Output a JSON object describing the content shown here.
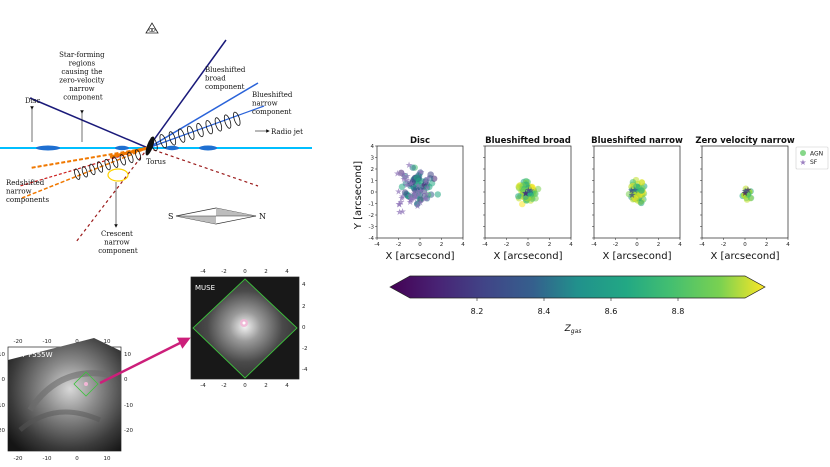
{
  "diagram": {
    "labels": {
      "star_forming": [
        "Star-forming",
        "regions",
        "causing the",
        "zero-velocity",
        "narrow",
        "component"
      ],
      "disc": "Disc",
      "blue_broad": [
        "Blueshifted",
        "broad",
        "component"
      ],
      "blue_narrow": [
        "Blueshifted",
        "narrow",
        "component"
      ],
      "radio_jet": "Radio jet",
      "torus": "Torus",
      "red_narrow": [
        "Redshifted",
        "narrow",
        "components"
      ],
      "crescent": [
        "Crescent",
        "narrow",
        "component"
      ],
      "south": "S",
      "north": "N"
    },
    "colors": {
      "disc_line": "#00bfff",
      "dark_blue": "#1a1a7a",
      "mid_blue": "#2255cc",
      "orange": "#f07800",
      "dark_red": "#9b1b1b",
      "yellow": "#ffd400"
    },
    "icons": [
      "eye-icon",
      "compass-arrow-icon"
    ]
  },
  "images": {
    "hst": {
      "label": "HST F555W",
      "label_italic": "HST",
      "label_rest": " F555W",
      "x_ticks": [
        "-20",
        "-10",
        "0",
        "10"
      ],
      "y_ticks": [
        "10",
        "0",
        "-10",
        "-20"
      ]
    },
    "muse": {
      "label": "MUSE",
      "x_ticks": [
        "-4",
        "-2",
        "0",
        "2",
        "4"
      ],
      "y_ticks": [
        "4",
        "2",
        "0",
        "-2",
        "-4"
      ]
    },
    "arrow_color": "#cc1f7a"
  },
  "chart_data": {
    "type": "scatter",
    "panels": [
      {
        "title": "Disc"
      },
      {
        "title": "Blueshifted broad"
      },
      {
        "title": "Blueshifted narrow"
      },
      {
        "title": "Zero velocity narrow"
      }
    ],
    "ylabel": "Y [arcsecond]",
    "xlabel": "X [arcsecond]",
    "xlim": [
      -4,
      4
    ],
    "ylim": [
      -4,
      4
    ],
    "x_ticks": [
      "-4",
      "-2",
      "0",
      "2",
      "4"
    ],
    "y_ticks": [
      "4",
      "3",
      "2",
      "1",
      "0",
      "-1",
      "-2",
      "-3",
      "-4"
    ],
    "legend": {
      "placement": "right",
      "items": [
        {
          "label": "AGN",
          "marker": "circle"
        },
        {
          "label": "SF",
          "marker": "star",
          "color": "#9b7fc0"
        }
      ]
    },
    "colorbar": {
      "label": "Zgas",
      "label_main": "Z",
      "label_sub": "gas",
      "range": [
        8.0,
        9.0
      ],
      "ticks": [
        "8.2",
        "8.4",
        "8.6",
        "8.8"
      ],
      "colormap": "viridis",
      "extend": "both"
    }
  }
}
